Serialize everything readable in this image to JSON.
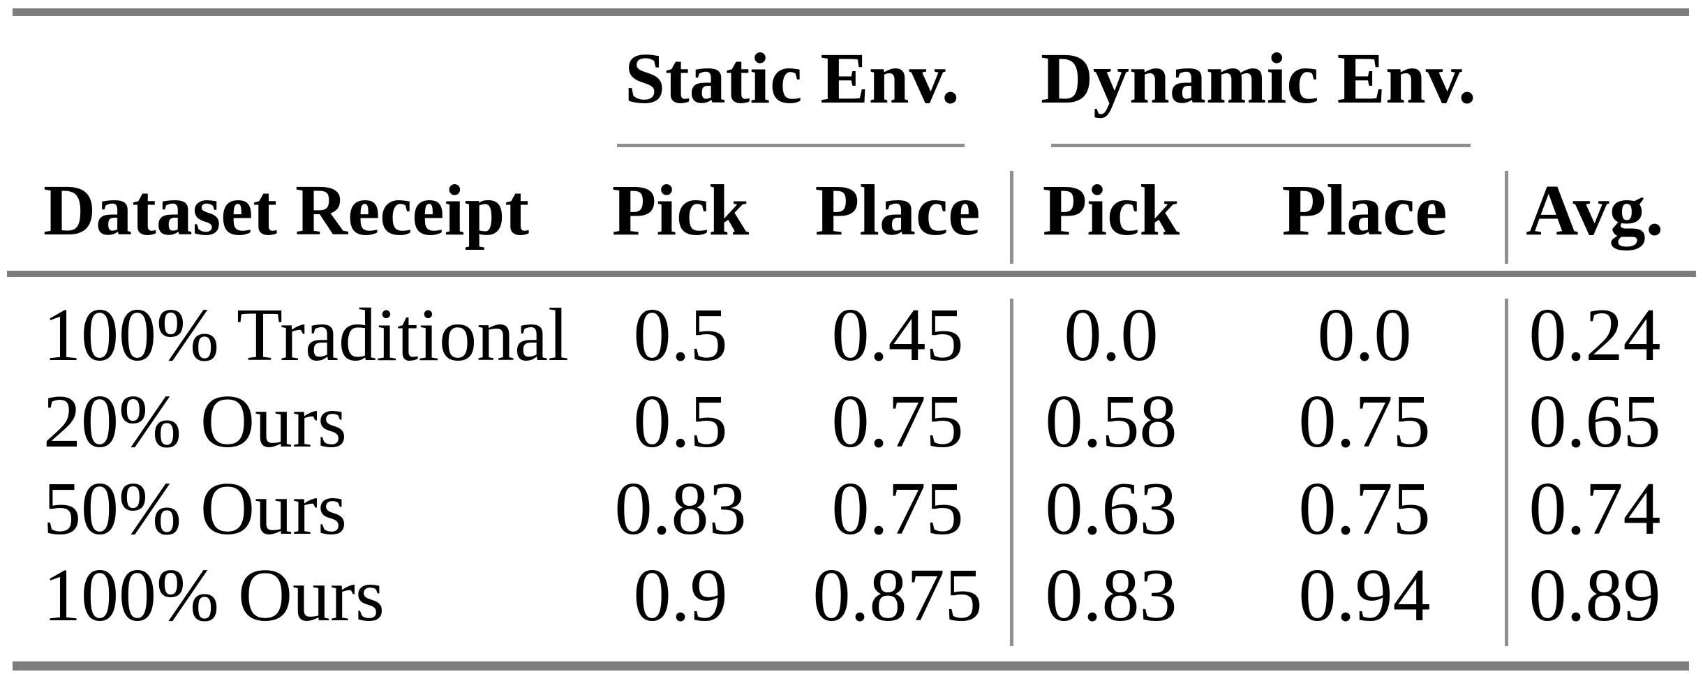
{
  "table": {
    "corner_header": "Dataset Receipt",
    "groups": [
      {
        "label": "Static Env.",
        "columns": [
          "Pick",
          "Place"
        ]
      },
      {
        "label": "Dynamic Env.",
        "columns": [
          "Pick",
          "Place"
        ]
      }
    ],
    "avg_header": "Avg.",
    "rows": [
      {
        "label": "100% Traditional",
        "values": [
          "0.5",
          "0.45",
          "0.0",
          "0.0",
          "0.24"
        ]
      },
      {
        "label": "20% Ours",
        "values": [
          "0.5",
          "0.75",
          "0.58",
          "0.75",
          "0.65"
        ]
      },
      {
        "label": "50% Ours",
        "values": [
          "0.83",
          "0.75",
          "0.63",
          "0.75",
          "0.74"
        ]
      },
      {
        "label": "100% Ours",
        "values": [
          "0.9",
          "0.875",
          "0.83",
          "0.94",
          "0.89"
        ]
      }
    ]
  },
  "colors": {
    "rule_thick": "#7d7d7d",
    "rule_thin": "#8f8f8f",
    "text": "#000000",
    "background": "#ffffff"
  },
  "chart_data": {
    "type": "table",
    "title": "",
    "column_groups": [
      "",
      "Static Env.",
      "Static Env.",
      "Dynamic Env.",
      "Dynamic Env.",
      ""
    ],
    "columns": [
      "Dataset Receipt",
      "Pick",
      "Place",
      "Pick",
      "Place",
      "Avg."
    ],
    "rows": [
      [
        "100% Traditional",
        0.5,
        0.45,
        0.0,
        0.0,
        0.24
      ],
      [
        "20% Ours",
        0.5,
        0.75,
        0.58,
        0.75,
        0.65
      ],
      [
        "50% Ours",
        0.83,
        0.75,
        0.63,
        0.75,
        0.74
      ],
      [
        "100% Ours",
        0.9,
        0.875,
        0.83,
        0.94,
        0.89
      ]
    ]
  }
}
